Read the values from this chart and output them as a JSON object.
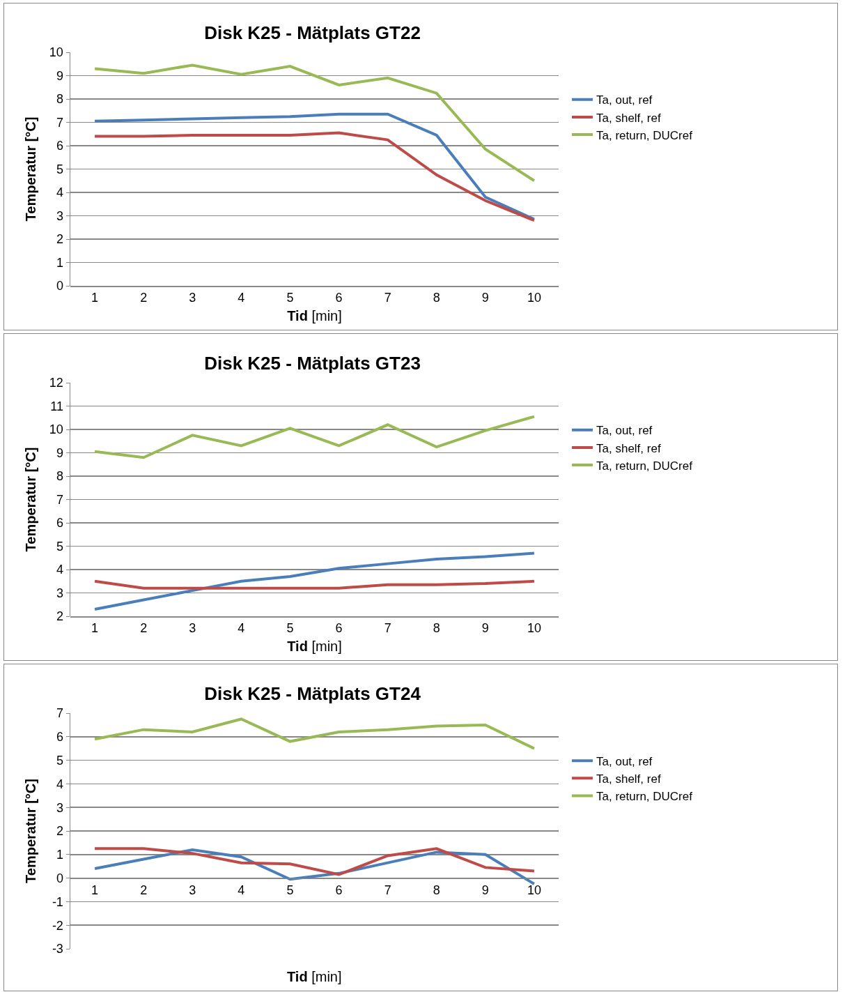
{
  "chart_data": [
    {
      "type": "line",
      "title": "Disk K25 - Mätplats GT22",
      "xlabel": "Tid [min]",
      "ylabel": "Temperatur [°C]",
      "categories": [
        "1",
        "2",
        "3",
        "4",
        "5",
        "6",
        "7",
        "8",
        "9",
        "10"
      ],
      "ylim": [
        0,
        10
      ],
      "yticks": [
        0,
        1,
        2,
        3,
        4,
        5,
        6,
        7,
        8,
        9,
        10
      ],
      "grid": "y",
      "legend": "right",
      "marker": "none",
      "line_style": "solid",
      "series": [
        {
          "name": "Ta, out, ref",
          "color": "#4a7ebb",
          "values": [
            7.05,
            7.1,
            7.15,
            7.2,
            7.25,
            7.35,
            7.35,
            6.45,
            3.8,
            2.85
          ]
        },
        {
          "name": "Ta, shelf, ref",
          "color": "#be4b48",
          "values": [
            6.4,
            6.4,
            6.45,
            6.45,
            6.45,
            6.55,
            6.25,
            4.75,
            3.65,
            2.8
          ]
        },
        {
          "name": "Ta, return, DUCref",
          "color": "#98b954",
          "values": [
            9.3,
            9.1,
            9.45,
            9.05,
            9.4,
            8.6,
            8.9,
            8.25,
            5.85,
            4.5
          ]
        }
      ]
    },
    {
      "type": "line",
      "title": "Disk K25 - Mätplats GT23",
      "xlabel": "Tid [min]",
      "ylabel": "Temperatur [°C]",
      "categories": [
        "1",
        "2",
        "3",
        "4",
        "5",
        "6",
        "7",
        "8",
        "9",
        "10"
      ],
      "ylim": [
        2,
        12
      ],
      "yticks": [
        2,
        3,
        4,
        5,
        6,
        7,
        8,
        9,
        10,
        11,
        12
      ],
      "grid": "y",
      "legend": "right",
      "marker": "none",
      "line_style": "solid",
      "series": [
        {
          "name": "Ta, out, ref",
          "color": "#4a7ebb",
          "values": [
            2.3,
            2.7,
            3.1,
            3.5,
            3.7,
            4.05,
            4.25,
            4.45,
            4.55,
            4.7
          ]
        },
        {
          "name": "Ta, shelf, ref",
          "color": "#be4b48",
          "values": [
            3.5,
            3.2,
            3.2,
            3.2,
            3.2,
            3.2,
            3.35,
            3.35,
            3.4,
            3.5
          ]
        },
        {
          "name": "Ta, return, DUCref",
          "color": "#98b954",
          "values": [
            9.05,
            8.8,
            9.75,
            9.3,
            10.05,
            9.3,
            10.2,
            9.25,
            9.95,
            10.55
          ]
        }
      ]
    },
    {
      "type": "line",
      "title": "Disk K25 - Mätplats GT24",
      "xlabel": "Tid [min]",
      "ylabel": "Temperatur [°C]",
      "categories": [
        "1",
        "2",
        "3",
        "4",
        "5",
        "6",
        "7",
        "8",
        "9",
        "10"
      ],
      "ylim": [
        -3,
        7
      ],
      "yticks": [
        -3,
        -2,
        -1,
        0,
        1,
        2,
        3,
        4,
        5,
        6,
        7
      ],
      "grid": "y",
      "legend": "right",
      "marker": "none",
      "line_style": "solid",
      "series": [
        {
          "name": "Ta, out, ref",
          "color": "#4a7ebb",
          "values": [
            0.4,
            0.8,
            1.2,
            0.9,
            -0.05,
            0.2,
            0.65,
            1.1,
            1.0,
            -0.25
          ]
        },
        {
          "name": "Ta, shelf, ref",
          "color": "#be4b48",
          "values": [
            1.25,
            1.25,
            1.05,
            0.65,
            0.6,
            0.15,
            0.95,
            1.25,
            0.45,
            0.3
          ]
        },
        {
          "name": "Ta, return, DUCref",
          "color": "#98b954",
          "values": [
            5.9,
            6.3,
            6.2,
            6.75,
            5.8,
            6.2,
            6.3,
            6.45,
            6.5,
            5.5
          ]
        }
      ]
    }
  ]
}
